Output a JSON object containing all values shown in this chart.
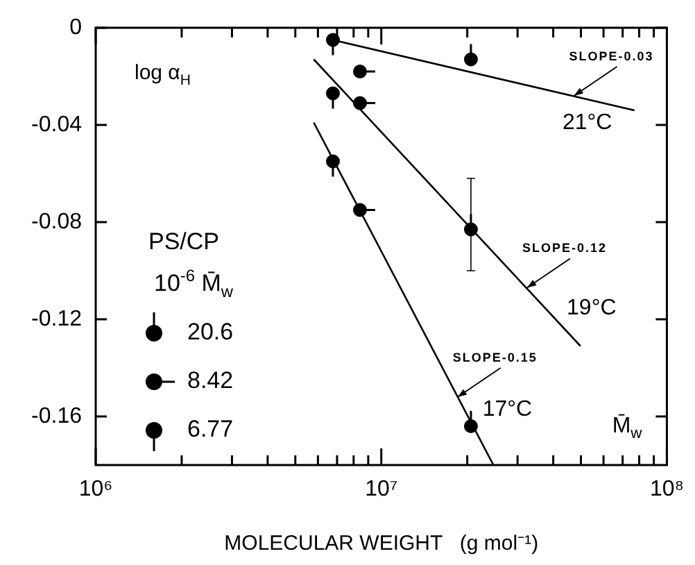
{
  "chart_data": {
    "type": "scatter",
    "xlabel": "MOLECULAR WEIGHT   (g mol⁻¹)",
    "ylabel": "log α$_{H}$",
    "legend_title": "PS/CP\n10$^{-6}$ M̄$_{w}$",
    "legend": "bottom left",
    "marker": "circle",
    "log": "x",
    "grid": false,
    "xlim": [
      1000000,
      100000000
    ],
    "xticks": [
      {
        "value": 1000000,
        "label": "10⁶"
      },
      {
        "value": 2000000,
        "label": null
      },
      {
        "value": 3000000,
        "label": null
      },
      {
        "value": 4000000,
        "label": null
      },
      {
        "value": 5000000,
        "label": null
      },
      {
        "value": 6000000,
        "label": null
      },
      {
        "value": 7000000,
        "label": null
      },
      {
        "value": 8000000,
        "label": null
      },
      {
        "value": 9000000,
        "label": null
      },
      {
        "value": 10000000,
        "label": "10⁷"
      },
      {
        "value": 20000000,
        "label": null
      },
      {
        "value": 30000000,
        "label": null
      },
      {
        "value": 40000000,
        "label": null
      },
      {
        "value": 50000000,
        "label": null
      },
      {
        "value": 60000000,
        "label": null
      },
      {
        "value": 70000000,
        "label": null
      },
      {
        "value": 80000000,
        "label": null
      },
      {
        "value": 90000000,
        "label": null
      },
      {
        "value": 100000000,
        "label": "10⁸"
      }
    ],
    "ylim": [
      -0.18,
      0
    ],
    "yticks": [
      {
        "value": 0,
        "label": "0"
      },
      {
        "value": -0.04,
        "label": "-0.04"
      },
      {
        "value": -0.08,
        "label": "-0.08"
      },
      {
        "value": -0.12,
        "label": "-0.12"
      },
      {
        "value": -0.16,
        "label": "-0.16"
      }
    ],
    "series": [
      {
        "name": "20.6",
        "color": "#000000",
        "x": [
          20600000,
          20600000,
          20600000
        ],
        "values": [
          -0.013,
          -0.083,
          -0.164
        ],
        "errors": [
          null,
          [
            -0.1,
            -0.062
          ],
          null
        ]
      },
      {
        "name": "8.42",
        "color": "#000000",
        "x": [
          8420000,
          8420000,
          8420000
        ],
        "values": [
          -0.018,
          -0.031,
          -0.075
        ]
      },
      {
        "name": "6.77",
        "color": "#000000",
        "x": [
          6770000,
          6770000,
          6770000
        ],
        "values": [
          -0.005,
          -0.027,
          -0.055
        ]
      },
      {
        "type": "line",
        "name": "21°C",
        "color": "#000000",
        "marker": "none",
        "line_style": "solid",
        "x": [
          6760000,
          77000000
        ],
        "values": [
          -0.005,
          -0.034
        ]
      },
      {
        "type": "line",
        "name": "19°C",
        "color": "#000000",
        "marker": "none",
        "line_style": "solid",
        "x": [
          5800000,
          49800000
        ],
        "values": [
          -0.013,
          -0.131
        ]
      },
      {
        "type": "line",
        "name": "17°C",
        "color": "#000000",
        "marker": "none",
        "line_style": "solid",
        "x": [
          5800000,
          24700000
        ],
        "values": [
          -0.039,
          -0.18
        ]
      }
    ],
    "annotations": [
      {
        "text": "SLOPE-0.03",
        "x": 47300000,
        "y": -0.028
      },
      {
        "text": "SLOPE-0.12",
        "x": 32400000,
        "y": -0.107
      },
      {
        "text": "SLOPE-0.15",
        "x": 18500000,
        "y": -0.152
      },
      "M̄$_{w}$"
    ]
  }
}
